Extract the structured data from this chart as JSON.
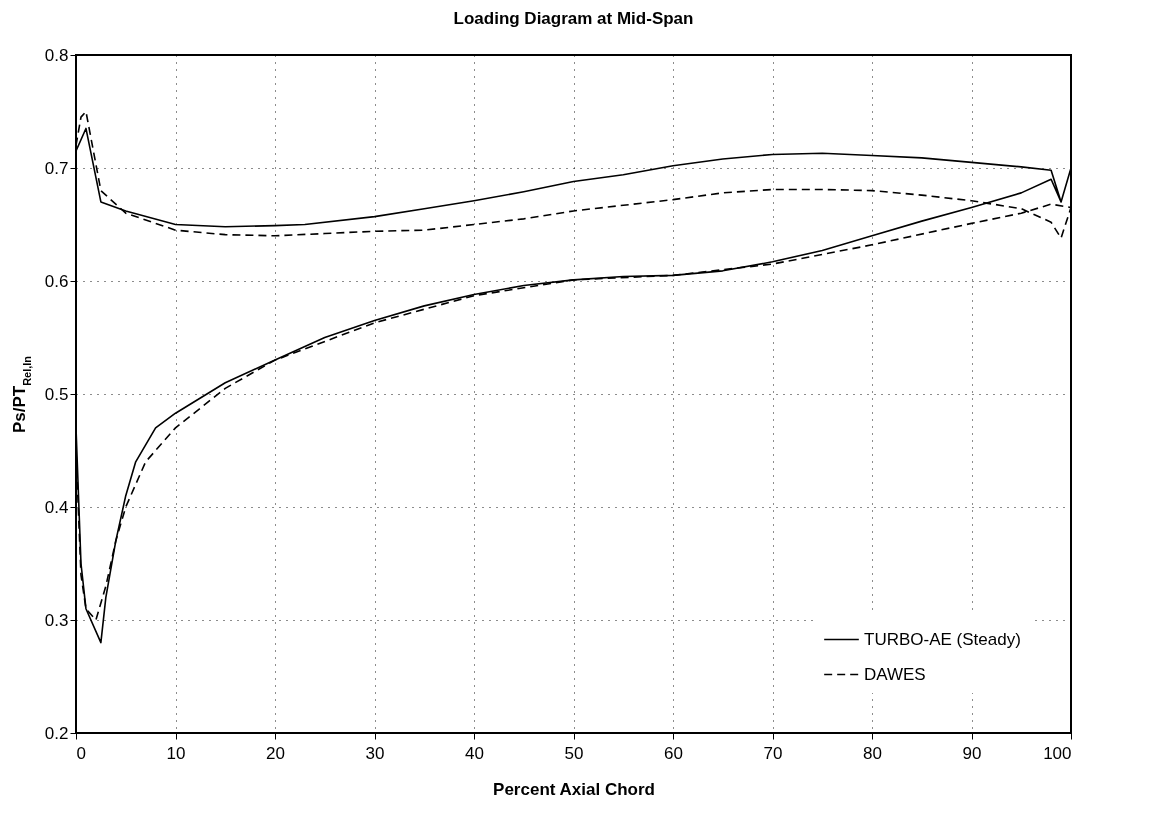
{
  "chart_data": {
    "type": "line",
    "title": "Loading Diagram at Mid-Span",
    "xlabel": "Percent Axial Chord",
    "ylabel": "Ps/PT$_{Rel,In}$",
    "xlim": [
      0,
      100
    ],
    "xticks": [
      0,
      10,
      20,
      30,
      40,
      50,
      60,
      70,
      80,
      90,
      100
    ],
    "ylim": [
      0.2,
      0.8
    ],
    "yticks": [
      0.2,
      0.3,
      0.4,
      0.5,
      0.6,
      0.7,
      0.8
    ],
    "grid": true,
    "legend": "bottom right",
    "marker": "none",
    "series": [
      {
        "name": "TURBO-AE (Steady)",
        "color": "#000000",
        "line_style": "solid",
        "x": [
          0,
          1,
          2.5,
          5,
          10,
          15,
          20,
          23,
          30,
          35,
          40,
          45,
          50,
          55,
          60,
          65,
          70,
          75,
          80,
          85,
          90,
          95,
          98,
          99,
          100,
          99,
          98,
          95,
          90,
          85,
          80,
          75,
          70,
          65,
          60,
          55,
          50,
          45,
          40,
          35,
          30,
          25,
          20,
          15,
          10,
          8,
          7,
          6,
          5,
          4,
          3,
          2.5,
          1,
          0.5,
          0
        ],
        "values": [
          0.715,
          0.735,
          0.67,
          0.662,
          0.65,
          0.648,
          0.649,
          0.65,
          0.657,
          0.664,
          0.671,
          0.679,
          0.688,
          0.694,
          0.702,
          0.708,
          0.712,
          0.713,
          0.711,
          0.709,
          0.705,
          0.701,
          0.698,
          0.67,
          0.7,
          0.67,
          0.69,
          0.678,
          0.665,
          0.653,
          0.64,
          0.627,
          0.617,
          0.609,
          0.605,
          0.604,
          0.601,
          0.596,
          0.588,
          0.578,
          0.565,
          0.55,
          0.53,
          0.51,
          0.483,
          0.47,
          0.455,
          0.44,
          0.41,
          0.37,
          0.32,
          0.28,
          0.31,
          0.35,
          0.47
        ]
      },
      {
        "name": "DAWES",
        "color": "#000000",
        "line_style": "dashed",
        "x": [
          0,
          0.5,
          1,
          2.5,
          5,
          10,
          15,
          20,
          25,
          30,
          35,
          40,
          45,
          50,
          55,
          60,
          65,
          70,
          75,
          80,
          85,
          90,
          95,
          98,
          99,
          100,
          98,
          95,
          90,
          80,
          70,
          60,
          50,
          40,
          30,
          20,
          15,
          10,
          7,
          5,
          4,
          3,
          2,
          1,
          0.5,
          0
        ],
        "values": [
          0.72,
          0.745,
          0.75,
          0.68,
          0.66,
          0.645,
          0.641,
          0.64,
          0.642,
          0.644,
          0.645,
          0.65,
          0.655,
          0.662,
          0.667,
          0.672,
          0.678,
          0.681,
          0.681,
          0.68,
          0.676,
          0.671,
          0.664,
          0.652,
          0.638,
          0.665,
          0.668,
          0.66,
          0.651,
          0.632,
          0.615,
          0.605,
          0.601,
          0.587,
          0.563,
          0.53,
          0.505,
          0.47,
          0.44,
          0.4,
          0.37,
          0.33,
          0.3,
          0.31,
          0.34,
          0.45
        ]
      }
    ]
  }
}
